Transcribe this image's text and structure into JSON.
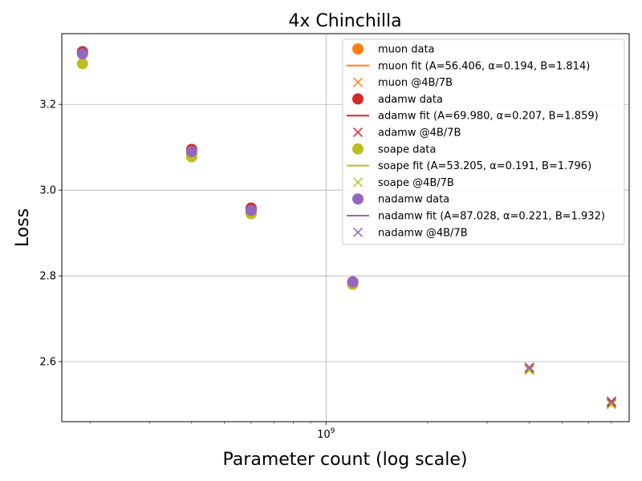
{
  "chart_data": {
    "type": "line",
    "title": "4x Chinchilla",
    "xlabel": "Parameter count (log scale)",
    "ylabel": "Loss",
    "xscale": "log",
    "xlim": [
      165000000,
      7900000000
    ],
    "ylim": [
      2.46,
      3.365
    ],
    "grid": true,
    "legend_position": "top-right",
    "x_major_ticks": [
      {
        "value": 1000000000,
        "base": "10",
        "exponent": "9"
      }
    ],
    "y_ticks": [
      {
        "value": 2.6,
        "label": "2.6"
      },
      {
        "value": 2.8,
        "label": "2.8"
      },
      {
        "value": 3.0,
        "label": "3.0"
      },
      {
        "value": 3.2,
        "label": "3.2"
      }
    ],
    "fit_form": "loss = B + A * (N / 1e6)^(-alpha)",
    "series": [
      {
        "optimizer": "muon",
        "color": "#ff7f0e",
        "legend_data": "muon data",
        "legend_fit": "muon fit (A=56.406, α=0.194, B=1.814)",
        "legend_extra": "muon @4B/7B",
        "fit": {
          "A": 56.406,
          "alpha": 0.194,
          "B": 1.814
        },
        "data": [
          {
            "x": 190000000,
            "y": 3.32
          },
          {
            "x": 400000000,
            "y": 3.085
          },
          {
            "x": 600000000,
            "y": 2.95
          },
          {
            "x": 1200000000,
            "y": 2.782
          }
        ],
        "extra": [
          {
            "x": 4000000000,
            "y": 2.582
          },
          {
            "x": 7000000000,
            "y": 2.503
          }
        ]
      },
      {
        "optimizer": "adamw",
        "color": "#d62728",
        "legend_data": "adamw data",
        "legend_fit": "adamw fit (A=69.980, α=0.207, B=1.859)",
        "legend_extra": "adamw @4B/7B",
        "fit": {
          "A": 69.98,
          "alpha": 0.207,
          "B": 1.859
        },
        "data": [
          {
            "x": 190000000,
            "y": 3.323
          },
          {
            "x": 400000000,
            "y": 3.095
          },
          {
            "x": 600000000,
            "y": 2.958
          },
          {
            "x": 1200000000,
            "y": 2.786
          }
        ],
        "extra": [
          {
            "x": 4000000000,
            "y": 2.585
          },
          {
            "x": 7000000000,
            "y": 2.505
          }
        ]
      },
      {
        "optimizer": "soape",
        "color": "#bcbd22",
        "legend_data": "soape data",
        "legend_fit": "soape fit (A=53.205, α=0.191, B=1.796)",
        "legend_extra": "soape @4B/7B",
        "fit": {
          "A": 53.205,
          "alpha": 0.191,
          "B": 1.796
        },
        "data": [
          {
            "x": 190000000,
            "y": 3.295
          },
          {
            "x": 400000000,
            "y": 3.078
          },
          {
            "x": 600000000,
            "y": 2.945
          },
          {
            "x": 1200000000,
            "y": 2.78
          }
        ],
        "extra": [
          {
            "x": 4000000000,
            "y": 2.58
          },
          {
            "x": 7000000000,
            "y": 2.5
          }
        ]
      },
      {
        "optimizer": "nadamw",
        "color": "#9467bd",
        "legend_data": "nadamw data",
        "legend_fit": "nadamw fit (A=87.028, α=0.221, B=1.932)",
        "legend_extra": "nadamw @4B/7B",
        "fit": {
          "A": 87.028,
          "alpha": 0.221,
          "B": 1.932
        },
        "data": [
          {
            "x": 190000000,
            "y": 3.318
          },
          {
            "x": 400000000,
            "y": 3.09
          },
          {
            "x": 600000000,
            "y": 2.953
          },
          {
            "x": 1200000000,
            "y": 2.786
          }
        ],
        "extra": [
          {
            "x": 4000000000,
            "y": 2.587
          },
          {
            "x": 7000000000,
            "y": 2.508
          }
        ]
      }
    ]
  }
}
